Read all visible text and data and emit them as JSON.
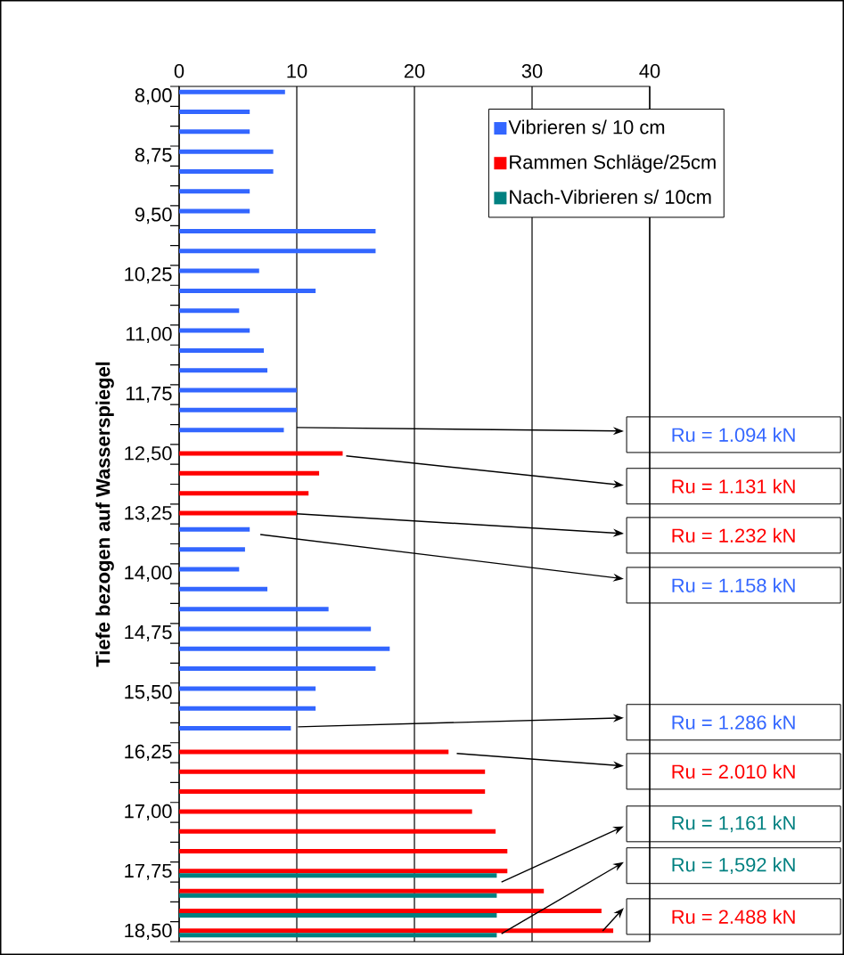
{
  "chart_data": {
    "type": "bar",
    "orientation": "horizontal",
    "ylabel": "Tiefe bezogen auf Wasserspiegel",
    "categories": [
      "8,00",
      null,
      null,
      "8,75",
      null,
      null,
      "9,50",
      null,
      null,
      "10,25",
      null,
      null,
      "11,00",
      null,
      null,
      "11,75",
      null,
      null,
      "12,50",
      null,
      null,
      "13,25",
      null,
      null,
      "14,00",
      null,
      null,
      "14,75",
      null,
      null,
      "15,50",
      null,
      null,
      "16,25",
      null,
      null,
      "17,00",
      null,
      null,
      "17,75",
      null,
      null,
      "18,50"
    ],
    "series": [
      {
        "name": "Vibrieren s/ 10 cm",
        "color": "#3366ff",
        "values": [
          9,
          6,
          6,
          8,
          8,
          6,
          6,
          16.7,
          16.7,
          6.8,
          11.6,
          5.1,
          6,
          7.2,
          7.5,
          10,
          10,
          8.9,
          null,
          null,
          null,
          null,
          6,
          5.6,
          5.1,
          7.5,
          12.7,
          16.3,
          17.9,
          16.7,
          11.6,
          11.6,
          9.5,
          null,
          null,
          null,
          null,
          null,
          null,
          null,
          null,
          null,
          null
        ]
      },
      {
        "name": "Rammen Schläge/25cm",
        "color": "#ff0000",
        "values": [
          null,
          null,
          null,
          null,
          null,
          null,
          null,
          null,
          null,
          null,
          null,
          null,
          null,
          null,
          null,
          null,
          null,
          null,
          13.9,
          11.9,
          11,
          10,
          null,
          null,
          null,
          null,
          null,
          null,
          null,
          null,
          null,
          null,
          null,
          22.9,
          26,
          26,
          24.9,
          26.9,
          27.9,
          27.9,
          31,
          35.9,
          36.9
        ]
      },
      {
        "name": "Nach-Vibrieren s/ 10cm",
        "color": "#008080",
        "values": [
          null,
          null,
          null,
          null,
          null,
          null,
          null,
          null,
          null,
          null,
          null,
          null,
          null,
          null,
          null,
          null,
          null,
          null,
          null,
          null,
          null,
          null,
          null,
          null,
          null,
          null,
          null,
          null,
          null,
          null,
          null,
          null,
          null,
          null,
          null,
          null,
          null,
          null,
          null,
          27,
          27,
          27,
          27
        ]
      }
    ],
    "xlim": [
      0,
      40
    ],
    "xticks": [
      0,
      10,
      20,
      30,
      40
    ],
    "grid": "x",
    "legend": "top right",
    "annotations": [
      "Ru = 1.094 kN",
      "Ru = 1.131 kN",
      "Ru = 1.232 kN",
      "Ru = 1.158 kN",
      "Ru = 1.286 kN",
      "Ru = 2.010 kN",
      "Ru = 1,161 kN",
      "Ru = 1,592 kN",
      "Ru = 2.488 kN"
    ]
  }
}
